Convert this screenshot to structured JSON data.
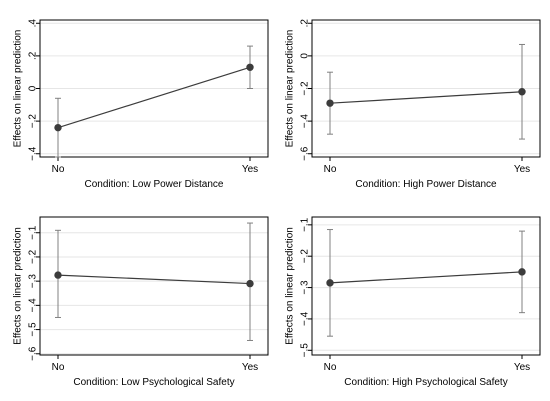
{
  "colors": {
    "line": "#3c3c3c",
    "ci": "#808080",
    "grid": "#e6e6e6",
    "axis": "#000000"
  },
  "chart_data": [
    {
      "type": "line",
      "categories": [
        "No",
        "Yes"
      ],
      "values": [
        -0.24,
        0.13
      ],
      "ci_lower": [
        -0.42,
        0.0
      ],
      "ci_upper": [
        -0.06,
        0.26
      ],
      "xlabel": "Condition: Low Power Distance",
      "ylabel": "Effects on linear prediction",
      "yticks": [
        -0.4,
        -0.2,
        0,
        0.2,
        0.4
      ],
      "ytick_labels": [
        "−.4",
        "−.2",
        "0",
        ".2",
        ".4"
      ],
      "ylim": [
        -0.42,
        0.42
      ],
      "grid": true
    },
    {
      "type": "line",
      "categories": [
        "No",
        "Yes"
      ],
      "values": [
        -0.29,
        -0.22
      ],
      "ci_lower": [
        -0.48,
        -0.51
      ],
      "ci_upper": [
        -0.1,
        0.07
      ],
      "xlabel": "Condition: High Power Distance",
      "ylabel": "Effects on linear prediction",
      "yticks": [
        -0.6,
        -0.4,
        -0.2,
        0,
        0.2
      ],
      "ytick_labels": [
        "−.6",
        "−.4",
        "−.2",
        "0",
        ".2"
      ],
      "ylim": [
        -0.62,
        0.22
      ],
      "grid": true
    },
    {
      "type": "line",
      "categories": [
        "No",
        "Yes"
      ],
      "values": [
        -0.275,
        -0.31
      ],
      "ci_lower": [
        -0.45,
        -0.545
      ],
      "ci_upper": [
        -0.09,
        -0.06
      ],
      "xlabel": "Condition: Low Psychological Safety",
      "ylabel": "Effects on linear prediction",
      "yticks": [
        -0.6,
        -0.5,
        -0.4,
        -0.3,
        -0.2,
        -0.1
      ],
      "ytick_labels": [
        "−.6",
        "−.5",
        "−.4",
        "−.3",
        "−.2",
        "−.1"
      ],
      "ylim": [
        -0.605,
        -0.035
      ],
      "grid": true
    },
    {
      "type": "line",
      "categories": [
        "No",
        "Yes"
      ],
      "values": [
        -0.285,
        -0.25
      ],
      "ci_lower": [
        -0.455,
        -0.38
      ],
      "ci_upper": [
        -0.115,
        -0.12
      ],
      "xlabel": "Condition: High Psychological Safety",
      "ylabel": "Effects on linear prediction",
      "yticks": [
        -0.5,
        -0.4,
        -0.3,
        -0.2,
        -0.1
      ],
      "ytick_labels": [
        "−.5",
        "−.4",
        "−.3",
        "−.2",
        "−.1"
      ],
      "ylim": [
        -0.515,
        -0.075
      ],
      "grid": true
    }
  ]
}
